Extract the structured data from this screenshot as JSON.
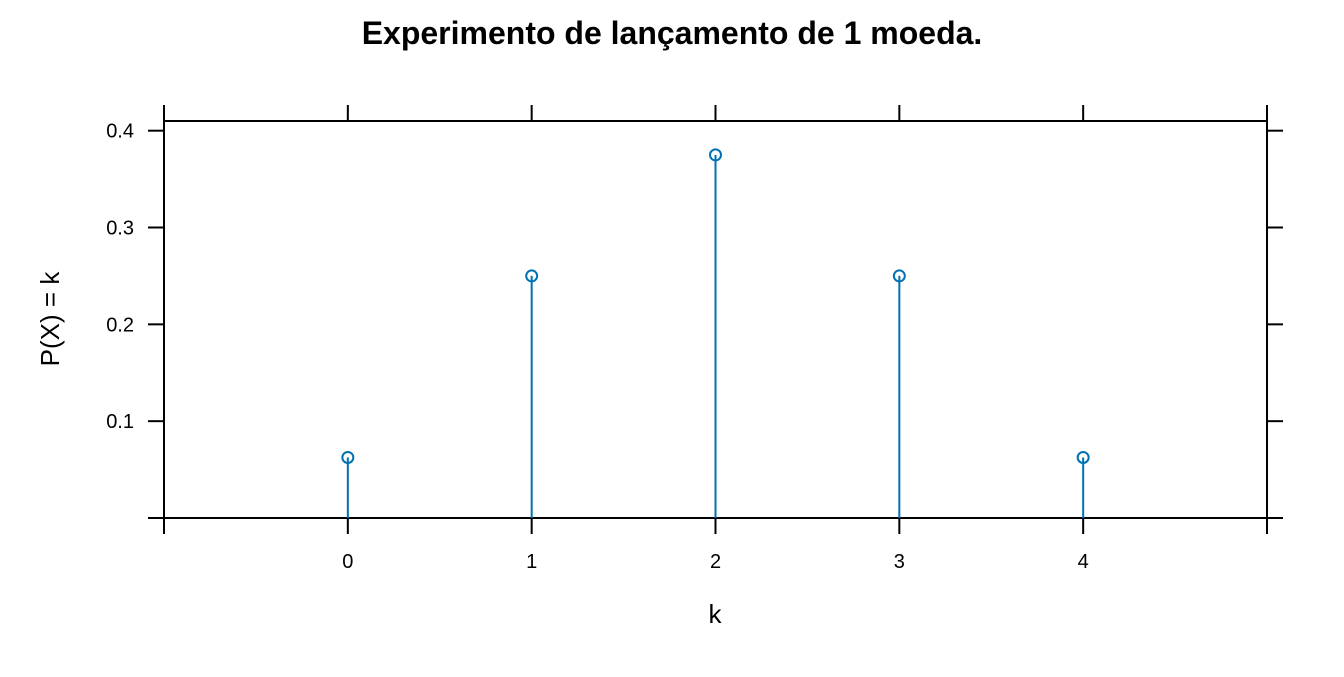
{
  "chart_data": {
    "type": "scatter",
    "style": "stem (vertical lines with open circles)",
    "title": "Experimento de lançamento de 1 moeda.",
    "xlabel": "k",
    "ylabel": "P(X) = k",
    "x": [
      0,
      1,
      2,
      3,
      4
    ],
    "y": [
      0.0625,
      0.25,
      0.375,
      0.25,
      0.0625
    ],
    "xlim": [
      -1,
      5
    ],
    "ylim": [
      0,
      0.41
    ],
    "x_ticks": [
      0,
      1,
      2,
      3,
      4
    ],
    "x_tick_labels": [
      "0",
      "1",
      "2",
      "3",
      "4"
    ],
    "y_ticks": [
      0.1,
      0.2,
      0.3,
      0.4
    ],
    "y_tick_labels": [
      "0.1",
      "0.2",
      "0.3",
      "0.4"
    ],
    "grid": false,
    "legend": "none",
    "series_color": "#0072B2",
    "axis_color": "#000000"
  }
}
